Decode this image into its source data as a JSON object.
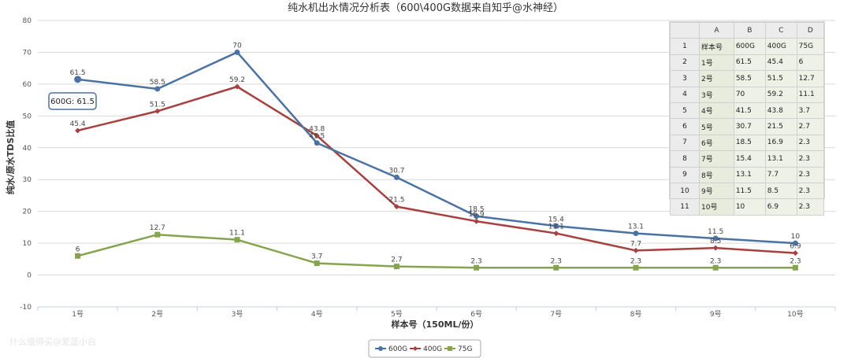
{
  "chart_data": {
    "type": "line",
    "title": "纯水机出水情况分析表（600\\400G数据来自知乎@水神经）",
    "xlabel": "样本号（150ML/份）",
    "ylabel": "纯水/原水TDS比值",
    "categories": [
      "1号",
      "2号",
      "3号",
      "4号",
      "5号",
      "6号",
      "7号",
      "8号",
      "9号",
      "10号"
    ],
    "ylim": [
      -10,
      80
    ],
    "yticks": [
      -10,
      0,
      10,
      20,
      30,
      40,
      50,
      60,
      70,
      80
    ],
    "grid": true,
    "legend_position": "bottom-center",
    "series": [
      {
        "name": "600G",
        "color": "#4a72a4",
        "marker": "circle",
        "values": [
          61.5,
          58.5,
          70,
          41.5,
          30.7,
          18.5,
          15.4,
          13.1,
          11.5,
          10
        ]
      },
      {
        "name": "400G",
        "color": "#a8403f",
        "marker": "diamond",
        "values": [
          45.4,
          51.5,
          59.2,
          43.8,
          21.5,
          16.9,
          13.1,
          7.7,
          8.5,
          6.9
        ]
      },
      {
        "name": "75G",
        "color": "#86a44c",
        "marker": "square",
        "values": [
          6,
          12.7,
          11.1,
          3.7,
          2.7,
          2.3,
          2.3,
          2.3,
          2.3,
          2.3
        ]
      }
    ],
    "tooltip": {
      "text": "600G: 61.5"
    }
  },
  "sheet": {
    "columns": [
      "A",
      "B",
      "C",
      "D"
    ],
    "rows": [
      {
        "n": "1",
        "cells": [
          "样本号",
          "600G",
          "400G",
          "75G"
        ]
      },
      {
        "n": "2",
        "cells": [
          "1号",
          "61.5",
          "45.4",
          "6"
        ]
      },
      {
        "n": "3",
        "cells": [
          "2号",
          "58.5",
          "51.5",
          "12.7"
        ]
      },
      {
        "n": "4",
        "cells": [
          "3号",
          "70",
          "59.2",
          "11.1"
        ]
      },
      {
        "n": "5",
        "cells": [
          "4号",
          "41.5",
          "43.8",
          "3.7"
        ]
      },
      {
        "n": "6",
        "cells": [
          "5号",
          "30.7",
          "21.5",
          "2.7"
        ]
      },
      {
        "n": "7",
        "cells": [
          "6号",
          "18.5",
          "16.9",
          "2.3"
        ]
      },
      {
        "n": "8",
        "cells": [
          "7号",
          "15.4",
          "13.1",
          "2.3"
        ]
      },
      {
        "n": "9",
        "cells": [
          "8号",
          "13.1",
          "7.7",
          "2.3"
        ]
      },
      {
        "n": "10",
        "cells": [
          "9号",
          "11.5",
          "8.5",
          "2.3"
        ]
      },
      {
        "n": "11",
        "cells": [
          "10号",
          "10",
          "6.9",
          "2.3"
        ]
      }
    ]
  },
  "watermark": "什么值得买@爱蓝小白"
}
